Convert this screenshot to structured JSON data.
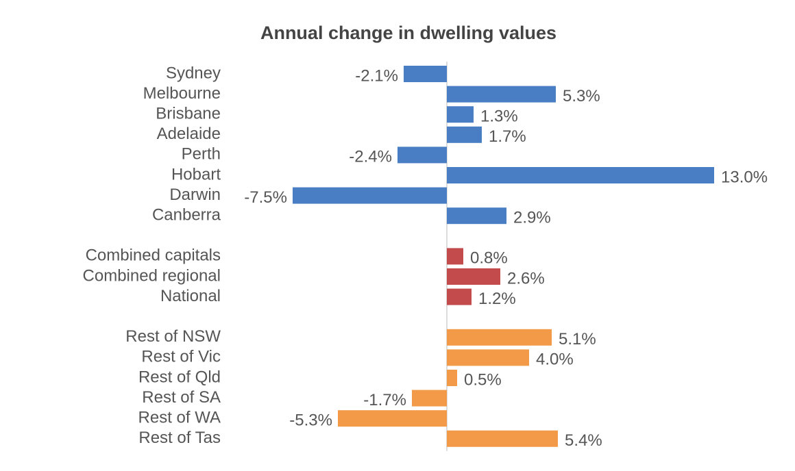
{
  "chart_data": {
    "type": "bar",
    "orientation": "horizontal",
    "title": "Annual change in dwelling values",
    "categories": [
      "Sydney",
      "Melbourne",
      "Brisbane",
      "Adelaide",
      "Perth",
      "Hobart",
      "Darwin",
      "Canberra",
      null,
      "Combined capitals",
      "Combined regional",
      "National",
      null,
      "Rest of NSW",
      "Rest of Vic",
      "Rest of Qld",
      "Rest of SA",
      "Rest of WA",
      "Rest of Tas"
    ],
    "values": [
      -2.1,
      5.3,
      1.3,
      1.7,
      -2.4,
      13.0,
      -7.5,
      2.9,
      null,
      0.8,
      2.6,
      1.2,
      null,
      5.1,
      4.0,
      0.5,
      -1.7,
      -5.3,
      5.4
    ],
    "value_labels": [
      "-2.1%",
      "5.3%",
      "1.3%",
      "1.7%",
      "-2.4%",
      "13.0%",
      "-7.5%",
      "2.9%",
      null,
      "0.8%",
      "2.6%",
      "1.2%",
      null,
      "5.1%",
      "4.0%",
      "0.5%",
      "-1.7%",
      "-5.3%",
      "5.4%"
    ],
    "colors": [
      "#4a7ec4",
      "#4a7ec4",
      "#4a7ec4",
      "#4a7ec4",
      "#4a7ec4",
      "#4a7ec4",
      "#4a7ec4",
      "#4a7ec4",
      null,
      "#c44b4b",
      "#c44b4b",
      "#c44b4b",
      null,
      "#f39a48",
      "#f39a48",
      "#f39a48",
      "#f39a48",
      "#f39a48",
      "#f39a48"
    ],
    "xlim": [
      -7.5,
      13.0
    ]
  }
}
